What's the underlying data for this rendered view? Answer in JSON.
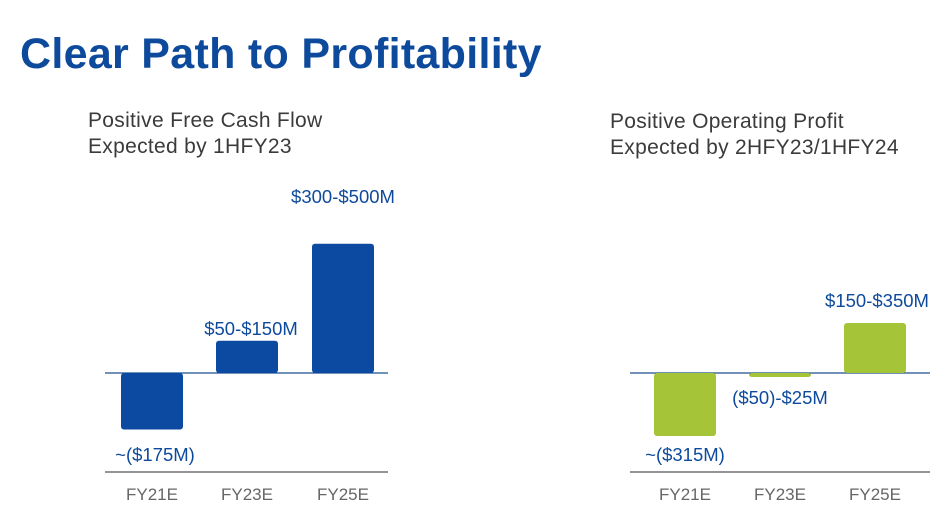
{
  "title": "Clear Path to Profitability",
  "colors": {
    "title": "#0e4a9c",
    "fcf_bar": "#0b4aa0",
    "op_bar": "#a6c437",
    "value_label": "#0e4a9c",
    "tick_label": "#666666",
    "zero_line": "#1f4f8f",
    "base_line": "#555555"
  },
  "chart_data": [
    {
      "type": "bar",
      "title_lines": [
        "Positive Free Cash Flow",
        "Expected by 1HFY23"
      ],
      "categories": [
        "FY21E",
        "FY23E",
        "FY25E"
      ],
      "series": [
        {
          "values": [
            -175,
            100,
            400
          ],
          "ranges": [
            [
              -175,
              -175
            ],
            [
              50,
              150
            ],
            [
              300,
              500
            ]
          ],
          "labels": [
            "~($175M)",
            "$50-$150M",
            "$300-$500M"
          ]
        }
      ],
      "ylabel": "",
      "ylim": [
        -175,
        500
      ],
      "grid": false
    },
    {
      "type": "bar",
      "title_lines": [
        "Positive Operating Profit",
        "Expected by 2HFY23/1HFY24"
      ],
      "categories": [
        "FY21E",
        "FY23E",
        "FY25E"
      ],
      "series": [
        {
          "values": [
            -315,
            -12.5,
            250
          ],
          "ranges": [
            [
              -315,
              -315
            ],
            [
              -50,
              25
            ],
            [
              150,
              350
            ]
          ],
          "labels": [
            "~($315M)",
            "($50)-$25M",
            "$150-$350M"
          ]
        }
      ],
      "ylabel": "",
      "ylim": [
        -315,
        350
      ],
      "grid": false
    }
  ]
}
